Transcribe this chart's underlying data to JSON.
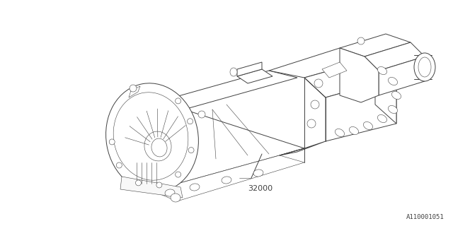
{
  "bg_color": "#ffffff",
  "line_color": "#404040",
  "part_number": "32000",
  "diagram_id": "A110001051",
  "lw": 0.7,
  "lw_thin": 0.4,
  "lw_thick": 0.9
}
